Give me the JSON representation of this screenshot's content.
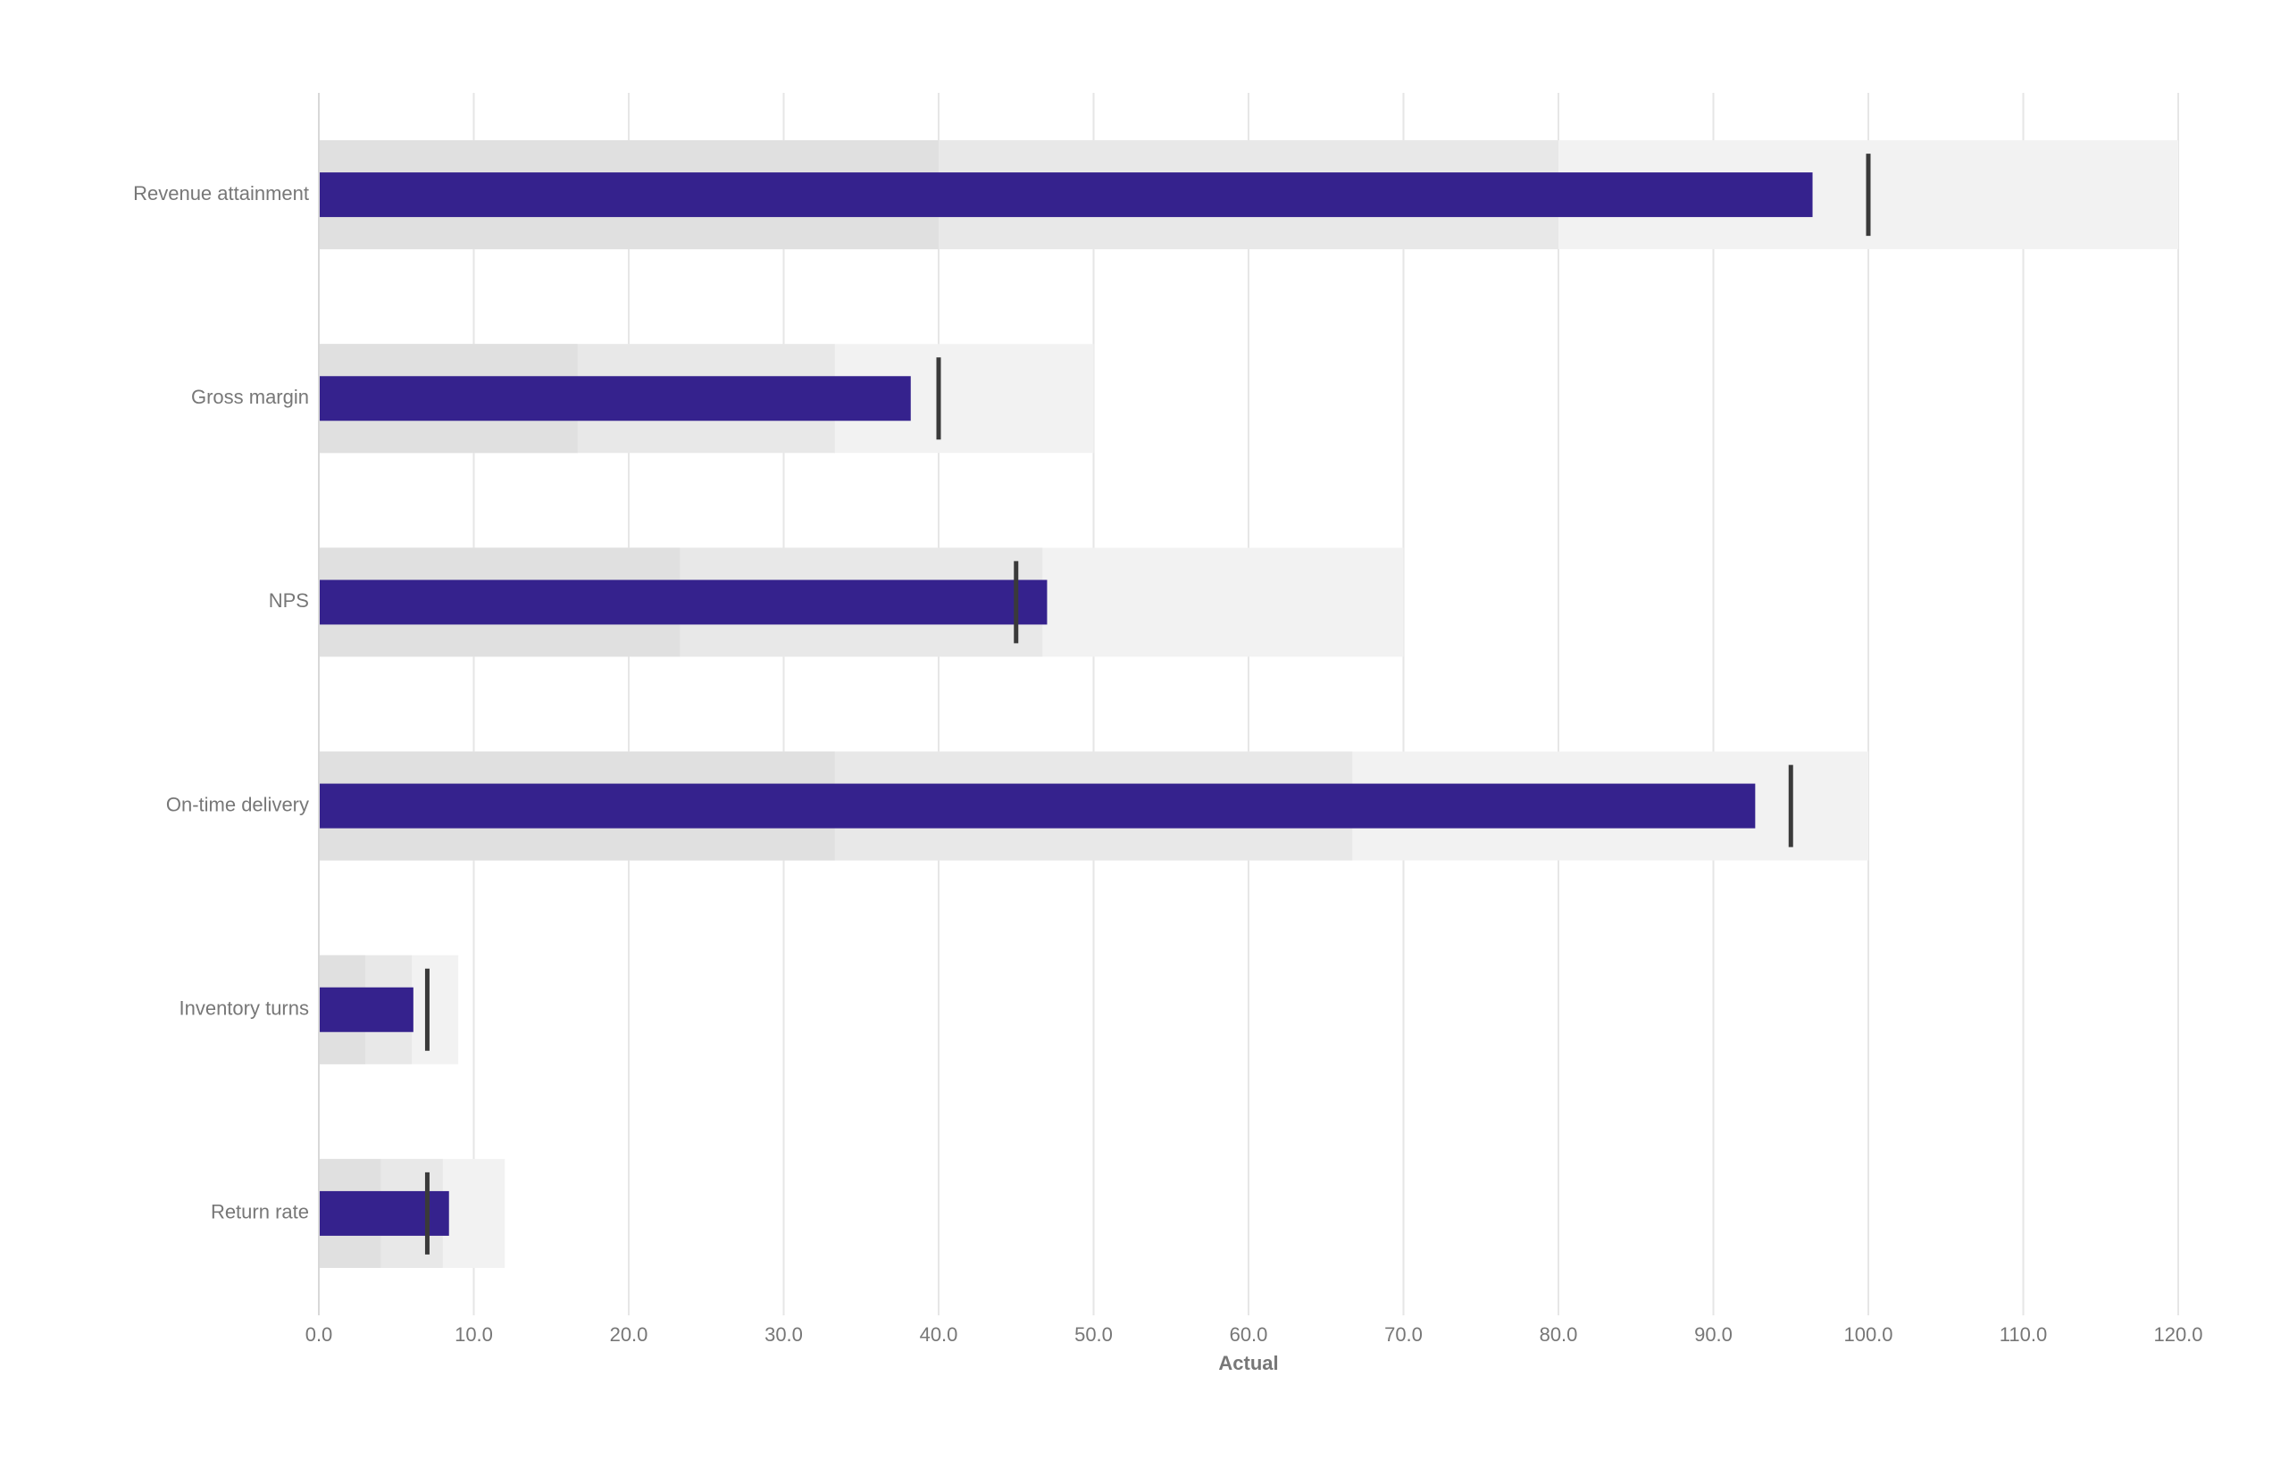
{
  "chart_data": {
    "type": "bullet",
    "categories": [
      "Revenue attainment",
      "Gross margin",
      "NPS",
      "On-time delivery",
      "Inventory turns",
      "Return rate"
    ],
    "values": [
      96.4,
      38.2,
      47.0,
      92.7,
      6.1,
      8.4
    ],
    "targets": [
      100,
      40,
      45,
      95,
      7,
      7
    ],
    "ranges": [
      [
        40,
        80,
        120
      ],
      [
        16.7,
        33.3,
        50
      ],
      [
        23.3,
        46.7,
        70
      ],
      [
        33.3,
        66.7,
        100
      ],
      [
        3,
        6,
        9
      ],
      [
        4,
        8,
        12
      ]
    ],
    "color": "#35228d",
    "target_color": "#3a3a3a",
    "range_colors": [
      "#e0e0e0",
      "#e8e8e8",
      "#f2f2f2"
    ],
    "xlabel": "Actual",
    "xlim": [
      0,
      120
    ],
    "xticks": [
      {
        "value": 0,
        "label": "0.0"
      },
      {
        "value": 10,
        "label": "10.0"
      },
      {
        "value": 20,
        "label": "20.0"
      },
      {
        "value": 30,
        "label": "30.0"
      },
      {
        "value": 40,
        "label": "40.0"
      },
      {
        "value": 50,
        "label": "50.0"
      },
      {
        "value": 60,
        "label": "60.0"
      },
      {
        "value": 70,
        "label": "70.0"
      },
      {
        "value": 80,
        "label": "80.0"
      },
      {
        "value": 90,
        "label": "90.0"
      },
      {
        "value": 100,
        "label": "100.0"
      },
      {
        "value": 110,
        "label": "110.0"
      },
      {
        "value": 120,
        "label": "120.0"
      }
    ],
    "grid": true
  }
}
